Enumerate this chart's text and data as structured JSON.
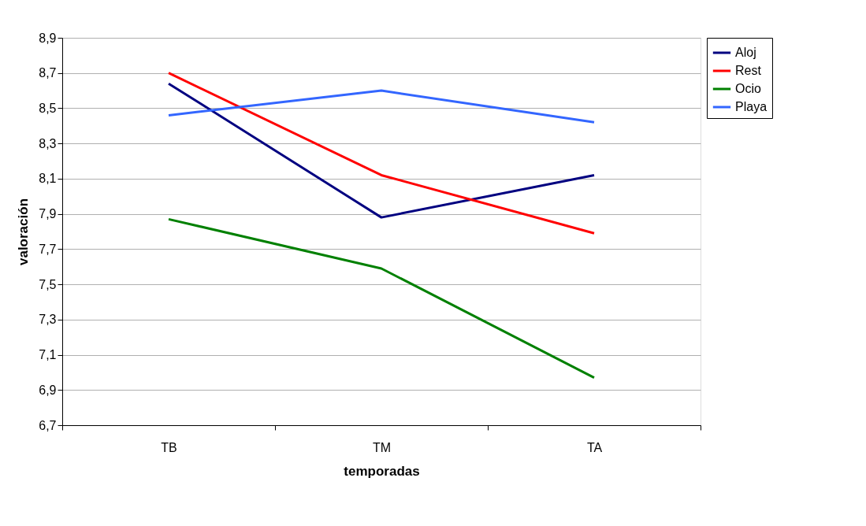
{
  "chart_data": {
    "type": "line",
    "xlabel": "temporadas",
    "ylabel": "valoración",
    "categories": [
      "TB",
      "TM",
      "TA"
    ],
    "series": [
      {
        "name": "Aloj",
        "color": "#000080",
        "values": [
          8.64,
          7.88,
          8.12
        ]
      },
      {
        "name": "Rest",
        "color": "#ff0000",
        "values": [
          8.7,
          8.12,
          7.79
        ]
      },
      {
        "name": "Ocio",
        "color": "#008000",
        "values": [
          7.87,
          7.59,
          6.97
        ]
      },
      {
        "name": "Playa",
        "color": "#3366ff",
        "values": [
          8.46,
          8.6,
          8.42
        ]
      }
    ],
    "ylim": [
      6.7,
      8.9
    ],
    "yticks": [
      {
        "value": 6.7,
        "label": "6,7"
      },
      {
        "value": 6.9,
        "label": "6,9"
      },
      {
        "value": 7.1,
        "label": "7,1"
      },
      {
        "value": 7.3,
        "label": "7,3"
      },
      {
        "value": 7.5,
        "label": "7,5"
      },
      {
        "value": 7.7,
        "label": "7,7"
      },
      {
        "value": 7.9,
        "label": "7,9"
      },
      {
        "value": 8.1,
        "label": "8,1"
      },
      {
        "value": 8.3,
        "label": "8,3"
      },
      {
        "value": 8.5,
        "label": "8,5"
      },
      {
        "value": 8.7,
        "label": "8,7"
      },
      {
        "value": 8.9,
        "label": "8,9"
      }
    ],
    "grid": "y",
    "legend": "right",
    "marker": "none",
    "line_style": "solid"
  }
}
